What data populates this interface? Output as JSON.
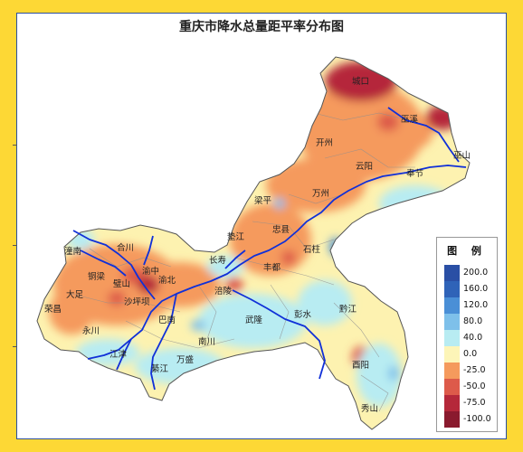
{
  "title": "重庆市降水总量距平率分布图",
  "legend": {
    "title": "图  例",
    "items": [
      {
        "label": "200.0",
        "color": "#2a4fa5"
      },
      {
        "label": "160.0",
        "color": "#2f63b8"
      },
      {
        "label": "120.0",
        "color": "#4a8fd6"
      },
      {
        "label": "80.0",
        "color": "#7ec0ea"
      },
      {
        "label": "40.0",
        "color": "#b8ecf2"
      },
      {
        "label": "0.0",
        "color": "#fdf5b8"
      },
      {
        "label": "-25.0",
        "color": "#f59a5d"
      },
      {
        "label": "-50.0",
        "color": "#dd5a4a"
      },
      {
        "label": "-75.0",
        "color": "#b5283a"
      },
      {
        "label": "-100.0",
        "color": "#8a1a2e"
      }
    ]
  },
  "places": [
    {
      "name": "城口"
    },
    {
      "name": "巫溪"
    },
    {
      "name": "巫山"
    },
    {
      "name": "开州"
    },
    {
      "name": "云阳"
    },
    {
      "name": "奉节"
    },
    {
      "name": "万州"
    },
    {
      "name": "梁平"
    },
    {
      "name": "忠县"
    },
    {
      "name": "垫江"
    },
    {
      "name": "石柱"
    },
    {
      "name": "长寿"
    },
    {
      "name": "丰都"
    },
    {
      "name": "涪陵"
    },
    {
      "name": "武隆"
    },
    {
      "name": "彭水"
    },
    {
      "name": "黔江"
    },
    {
      "name": "酉阳"
    },
    {
      "name": "秀山"
    },
    {
      "name": "潼南"
    },
    {
      "name": "合川"
    },
    {
      "name": "铜梁"
    },
    {
      "name": "大足"
    },
    {
      "name": "璧山"
    },
    {
      "name": "渝北"
    },
    {
      "name": "沙坪坝"
    },
    {
      "name": "荣昌"
    },
    {
      "name": "永川"
    },
    {
      "name": "巴南"
    },
    {
      "name": "南川"
    },
    {
      "name": "江津"
    },
    {
      "name": "綦江"
    },
    {
      "name": "万盛"
    },
    {
      "name": "渝中"
    }
  ]
}
